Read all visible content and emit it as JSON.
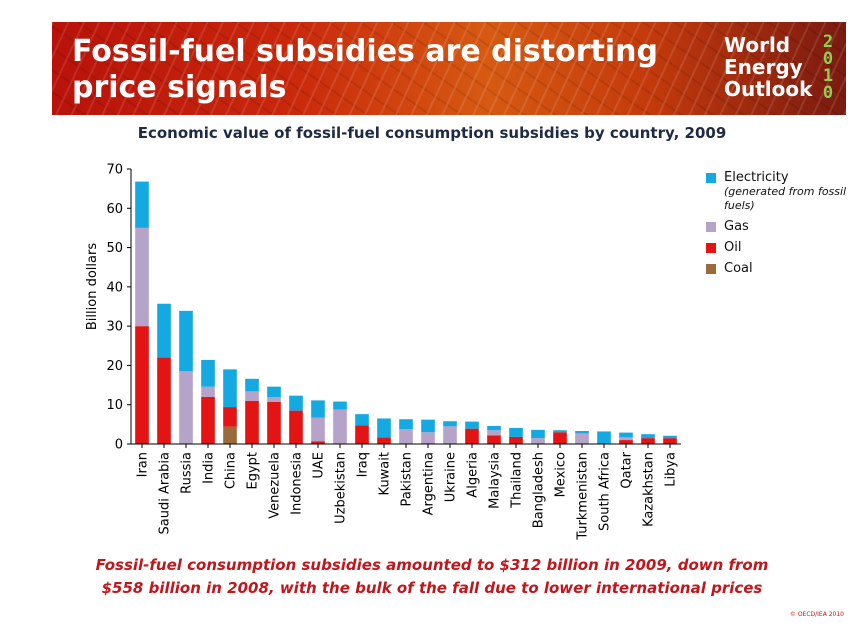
{
  "banner": {
    "title_line1": "Fossil-fuel subsidies are distorting",
    "title_line2": "price signals",
    "logo_line1": "World",
    "logo_line2": "Energy",
    "logo_line3": "Outlook",
    "logo_year": "2010"
  },
  "colors": {
    "electricity": "#14a9e0",
    "gas": "#b5a3c9",
    "oil": "#e41414",
    "coal": "#9a6a3a"
  },
  "chart_data": {
    "type": "bar",
    "stacked": true,
    "title": "Economic value of fossil-fuel consumption subsidies by country, 2009",
    "ylabel": "Billion dollars",
    "ylim": [
      0,
      70
    ],
    "yticks": [
      0,
      10,
      20,
      30,
      40,
      50,
      60,
      70
    ],
    "categories": [
      "Iran",
      "Saudi Arabia",
      "Russia",
      "India",
      "China",
      "Egypt",
      "Venezuela",
      "Indonesia",
      "UAE",
      "Uzbekistan",
      "Iraq",
      "Kuwait",
      "Pakistan",
      "Argentina",
      "Ukraine",
      "Algeria",
      "Malaysia",
      "Thailand",
      "Bangladesh",
      "Mexico",
      "Turkmenistan",
      "South Africa",
      "Qatar",
      "Kazakhstan",
      "Libya"
    ],
    "series": [
      {
        "name": "Coal",
        "color": "#9a6a3a",
        "values": [
          0,
          0,
          0,
          0,
          4.4,
          0,
          0,
          0,
          0,
          0,
          0,
          0,
          0,
          0,
          0,
          0,
          0,
          0,
          0,
          0,
          0,
          0,
          0,
          0,
          0
        ]
      },
      {
        "name": "Oil",
        "color": "#e41414",
        "values": [
          30,
          22,
          0,
          12,
          5,
          11,
          10.7,
          8.5,
          0.7,
          0,
          4.7,
          1.7,
          0,
          0.2,
          0,
          3.9,
          2.2,
          1.8,
          0,
          3,
          0,
          0,
          1,
          1.5,
          1.5
        ]
      },
      {
        "name": "Gas",
        "color": "#b5a3c9",
        "values": [
          25,
          0,
          18.5,
          2.6,
          0,
          2.4,
          1.2,
          0,
          6,
          8.8,
          0,
          0,
          3.8,
          2.8,
          4.5,
          0,
          1.3,
          0,
          1.5,
          0,
          2.7,
          0,
          0.7,
          0,
          0
        ]
      },
      {
        "name": "Electricity",
        "color": "#14a9e0",
        "values": [
          11.8,
          13.7,
          15.4,
          6.8,
          9.6,
          3.2,
          2.7,
          3.8,
          4.4,
          2,
          2.9,
          4.8,
          2.5,
          3.2,
          1.3,
          1.8,
          1.1,
          2.3,
          2.1,
          0.5,
          0.6,
          3.2,
          1.2,
          1,
          0.6
        ]
      }
    ],
    "legend": {
      "position": "right",
      "items": [
        {
          "label": "Electricity",
          "note": "(generated from fossil fuels)",
          "color": "#14a9e0"
        },
        {
          "label": "Gas",
          "color": "#b5a3c9"
        },
        {
          "label": "Oil",
          "color": "#e41414"
        },
        {
          "label": "Coal",
          "color": "#9a6a3a"
        }
      ]
    }
  },
  "caption": {
    "line1": "Fossil-fuel consumption subsidies amounted to $312 billion in 2009, down from",
    "line2": "$558 billion in 2008, with the bulk of the fall due to lower international prices"
  },
  "copyright": "© OECD/IEA 2010"
}
